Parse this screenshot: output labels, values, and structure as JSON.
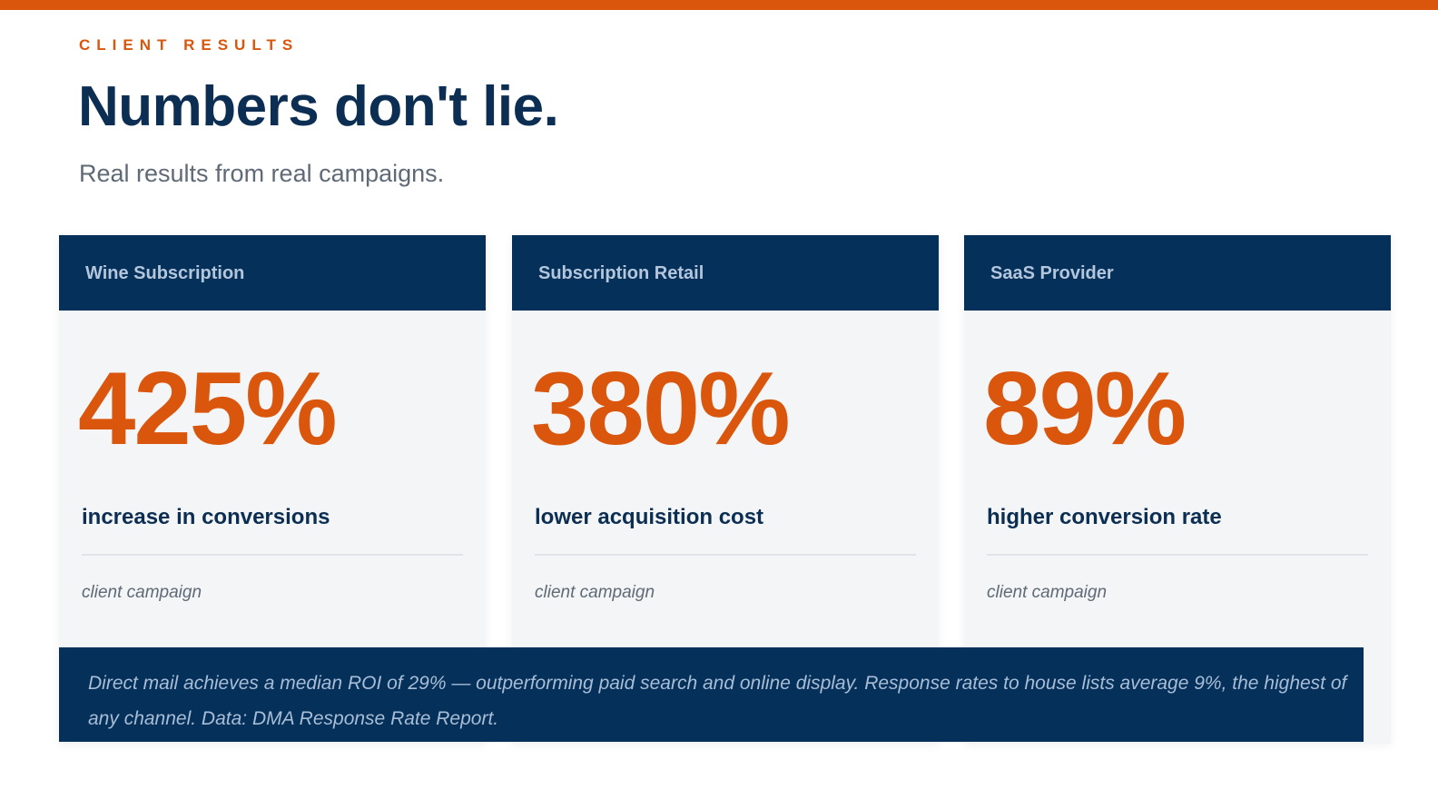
{
  "header": {
    "eyebrow": "CLIENT RESULTS",
    "title": "Numbers don't lie.",
    "subtitle": "Real results from real campaigns."
  },
  "cards": [
    {
      "title": "Wine Subscription",
      "value": "425%",
      "label": "increase in conversions",
      "note": "client campaign"
    },
    {
      "title": "Subscription Retail",
      "value": "380%",
      "label": "lower acquisition cost",
      "note": "client campaign"
    },
    {
      "title": "SaaS Provider",
      "value": "89%",
      "label": "higher conversion rate",
      "note": "client campaign"
    }
  ],
  "footer": {
    "text": "Direct mail achieves a median ROI of 29% — outperforming paid search and online display.  Response rates to house lists average 9%, the highest of any channel.  Data: DMA Response Rate Report."
  },
  "colors": {
    "accent": "#d9560c",
    "navy": "#05305a",
    "heading": "#0b2e52",
    "muted": "#5f6a76",
    "card_bg": "#f4f5f7"
  }
}
